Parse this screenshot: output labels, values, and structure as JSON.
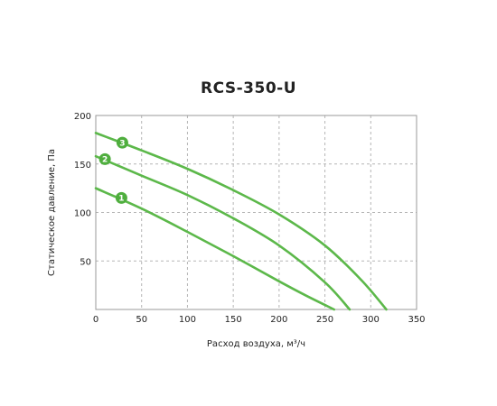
{
  "chart_data": {
    "type": "line",
    "title": "RCS-350-U",
    "xlabel": "Расход воздуха, м³/ч",
    "ylabel": "Статическое давление, Па",
    "xlim": [
      0,
      350
    ],
    "ylim": [
      0,
      200
    ],
    "x_ticks": [
      0,
      50,
      100,
      150,
      200,
      250,
      300,
      350
    ],
    "y_ticks": [
      50,
      100,
      150,
      200
    ],
    "grid": true,
    "colors": {
      "line": "#5cb84a",
      "badge": "#4fae3e",
      "grid": "#b5b5b5",
      "frame": "#9a9a9a"
    },
    "series": [
      {
        "badge": "1",
        "badge_at": [
          28,
          115
        ],
        "x": [
          0,
          50,
          100,
          150,
          200,
          230,
          260
        ],
        "y": [
          125,
          104,
          80,
          55,
          29,
          14,
          0
        ]
      },
      {
        "badge": "2",
        "badge_at": [
          10,
          155
        ],
        "x": [
          0,
          50,
          100,
          150,
          200,
          250,
          277
        ],
        "y": [
          158,
          138,
          118,
          94,
          66,
          28,
          0
        ]
      },
      {
        "badge": "3",
        "badge_at": [
          29,
          172
        ],
        "x": [
          0,
          50,
          100,
          150,
          200,
          250,
          290,
          317
        ],
        "y": [
          182,
          164,
          145,
          123,
          98,
          66,
          30,
          0
        ]
      }
    ]
  }
}
